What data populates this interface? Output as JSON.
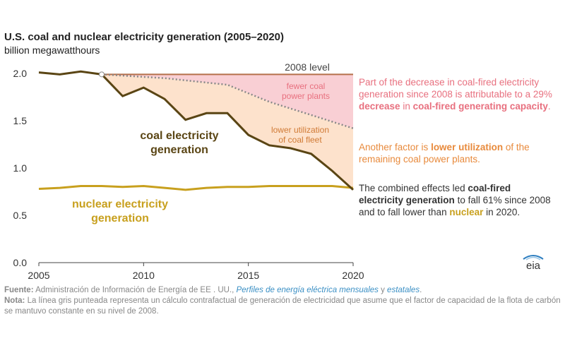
{
  "chart_data": {
    "type": "line",
    "title": "U.S. coal and nuclear electricity generation (2005–2020)",
    "subtitle": "billion megawatthours",
    "x": [
      2005,
      2006,
      2007,
      2008,
      2009,
      2010,
      2011,
      2012,
      2013,
      2014,
      2015,
      2016,
      2017,
      2018,
      2019,
      2020
    ],
    "xlim": [
      2005,
      2020
    ],
    "ylim": [
      0,
      2.0
    ],
    "x_ticks": [
      "2005",
      "2010",
      "2015",
      "2020"
    ],
    "y_ticks": [
      "0.0",
      "0.5",
      "1.0",
      "1.5",
      "2.0"
    ],
    "grid": false,
    "series": [
      {
        "name": "coal electricity generation",
        "color": "#5a4514",
        "values": [
          2.01,
          1.99,
          2.02,
          1.99,
          1.76,
          1.85,
          1.73,
          1.51,
          1.58,
          1.58,
          1.35,
          1.24,
          1.21,
          1.15,
          0.97,
          0.77
        ]
      },
      {
        "name": "nuclear electricity generation",
        "color": "#c8a01e",
        "values": [
          0.78,
          0.79,
          0.81,
          0.81,
          0.8,
          0.81,
          0.79,
          0.77,
          0.79,
          0.8,
          0.8,
          0.81,
          0.81,
          0.81,
          0.81,
          0.79
        ]
      },
      {
        "name": "counterfactual",
        "style": "dotted",
        "color": "#888888",
        "x": [
          2008,
          2011,
          2014,
          2016,
          2018,
          2020
        ],
        "values": [
          1.99,
          1.95,
          1.88,
          1.7,
          1.56,
          1.42
        ]
      },
      {
        "name": "2008 level",
        "color": "#b5704a",
        "x": [
          2008,
          2020
        ],
        "values": [
          1.99,
          1.99
        ]
      }
    ],
    "annotations": {
      "level_2008": "2008 level",
      "fewer_plants": [
        "fewer coal",
        "power plants"
      ],
      "lower_util": [
        "lower utilization",
        "of coal fleet"
      ],
      "coal_label": [
        "coal electricity",
        "generation"
      ],
      "nuclear_label": [
        "nuclear electricity",
        "generation"
      ]
    },
    "colors": {
      "pink_area": "#f9cfd4",
      "peach_area": "#fde2cc",
      "pink_text": "#e8707f",
      "orange_text": "#e88a3c",
      "coal": "#5a4514",
      "nuclear": "#c8a01e"
    }
  },
  "notes": {
    "n1": {
      "a": "Part of the decrease in coal-fired electricity generation since 2008 is attributable to a 29% ",
      "b": "decrease",
      "c": " in ",
      "d": "coal-fired generating capacity",
      "e": "."
    },
    "n2": {
      "a": "Another factor is ",
      "b": "lower utilization",
      "c": " of the remaining coal power plants."
    },
    "n3": {
      "a": "The combined effects led ",
      "b": "coal-fired electricity generation",
      "c": " to fall 61% since 2008 and to fall lower than ",
      "d": "nuclear",
      "e": " in 2020."
    }
  },
  "footer": {
    "source_label": "Fuente:",
    "source_text": " Administración de Información de Energía de EE . UU., ",
    "link1": "Perfiles de energía eléctrica mensuales",
    "and": " y ",
    "link2": "estatales",
    "end": ".",
    "note_label": "Nota:",
    "note_text": " La línea gris punteada representa un cálculo contrafactual de generación de electricidad que asume que el factor de capacidad de la flota de carbón se mantuvo constante en su nivel de 2008."
  },
  "logo_text": "eia"
}
